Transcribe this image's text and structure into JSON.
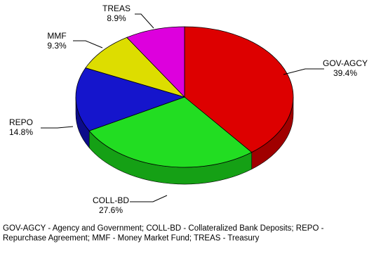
{
  "chart_data": {
    "type": "pie",
    "categories": [
      "GOV-AGCY",
      "COLL-BD",
      "REPO",
      "MMF",
      "TREAS"
    ],
    "values": [
      39.4,
      27.6,
      14.8,
      9.3,
      8.9
    ],
    "value_labels": [
      "39.4%",
      "27.6%",
      "14.8%",
      "9.3%",
      "8.9%"
    ],
    "colors": [
      "#dd0000",
      "#22dd22",
      "#1515cc",
      "#dddd00",
      "#dd00dd"
    ],
    "side_colors": [
      "#a00000",
      "#15a015",
      "#0c0c8a",
      "#a0a000",
      "#a000a0"
    ],
    "style": "3d"
  },
  "footnote": "GOV-AGCY - Agency and Government; COLL-BD - Collateralized Bank Deposits; REPO - Repurchase Agreement; MMF - Money Market Fund; TREAS - Treasury"
}
